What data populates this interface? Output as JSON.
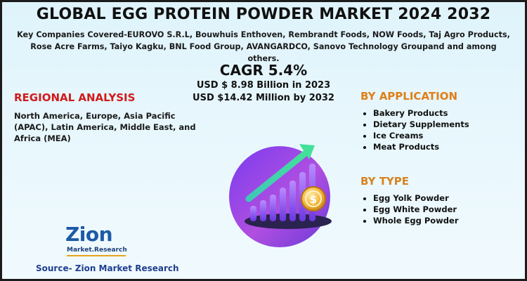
{
  "title": "GLOBAL EGG PROTEIN POWDER MARKET 2024 2032",
  "companies": "Key Companies Covered-EUROVO S.R.L, Bouwhuis Enthoven, Rembrandt Foods, NOW Foods, Taj Agro Products, Rose Acre Farms, Taiyo Kagku, BNL Food Group, AVANGARDCO, Sanovo Technology Groupand and among others.",
  "cagr": "CAGR 5.4%",
  "market": {
    "line1": "USD $ 8.98 Billion  in 2023",
    "line2": "USD $14.42 Million  by 2032"
  },
  "regional": {
    "title": "REGIONAL ANALYSIS",
    "text": "North America, Europe, Asia Pacific (APAC), Latin America, Middle East, and Africa (MEA)"
  },
  "application": {
    "title": "BY APPLICATION",
    "items": [
      "Bakery Products",
      "Dietary Supplements",
      "Ice Creams",
      "Meat Products"
    ]
  },
  "type": {
    "title": "BY TYPE",
    "items": [
      "Egg Yolk Powder",
      "Egg White Powder",
      "Whole Egg Powder"
    ]
  },
  "logo": {
    "name": "Zion",
    "subtitle": "Market.Research"
  },
  "source": "Source- Zion Market Research",
  "colors": {
    "regional_title": "#d11a1a",
    "application_title": "#e07f16",
    "type_title": "#d6831f",
    "background": "#dff3fb",
    "logo_blue": "#1d5aa6"
  },
  "icons": [
    "growth-bar-chart-icon",
    "coin-icon",
    "up-arrow-icon"
  ]
}
